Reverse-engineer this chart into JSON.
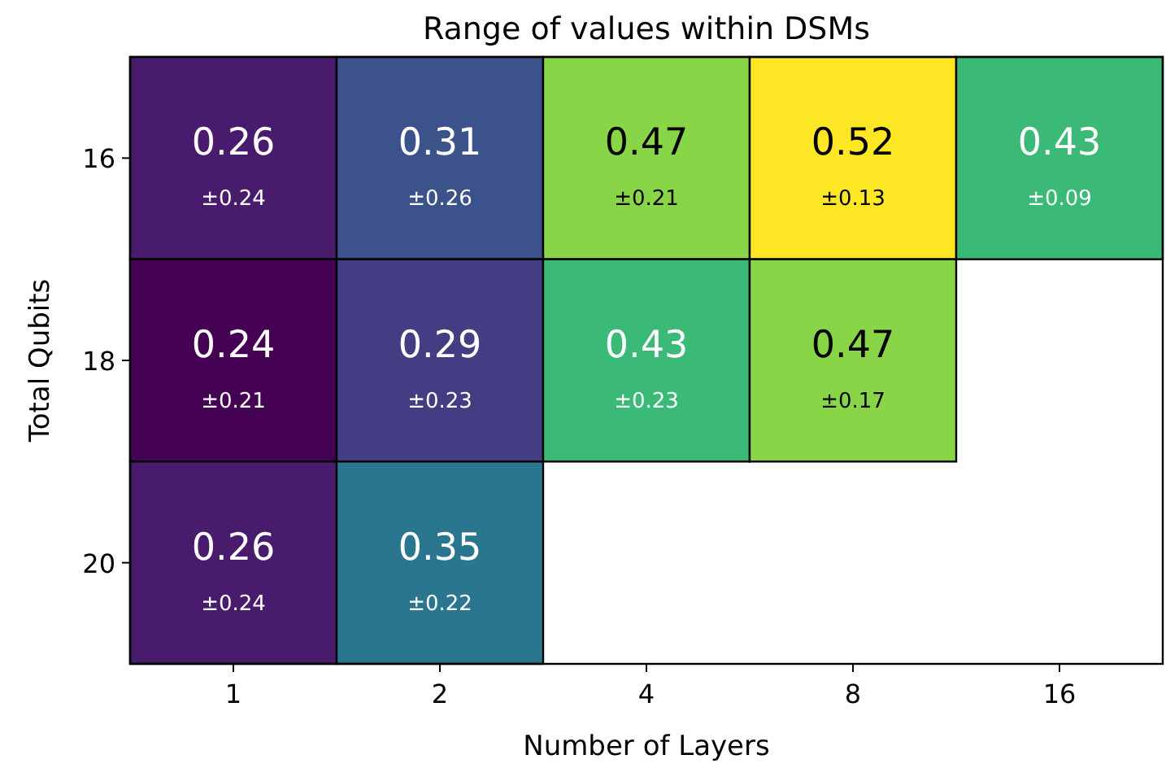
{
  "chart_data": {
    "type": "heatmap",
    "title": "Range of values within DSMs",
    "xlabel": "Number of Layers",
    "ylabel": "Total Qubits",
    "categories": [
      "1",
      "2",
      "4",
      "8",
      "16"
    ],
    "y_categories": [
      "16",
      "18",
      "20"
    ],
    "cells": [
      [
        0.26,
        0.31,
        0.47,
        0.52,
        0.43
      ],
      [
        0.24,
        0.29,
        0.43,
        0.47,
        null
      ],
      [
        0.26,
        0.35,
        null,
        null,
        null
      ]
    ],
    "data_labels": true,
    "annotations": [
      "±0.24",
      "±0.26",
      "±0.21",
      "±0.13",
      "±0.09",
      "±0.21",
      "±0.23",
      "±0.23",
      "±0.17",
      "±0.24",
      "±0.22"
    ]
  }
}
